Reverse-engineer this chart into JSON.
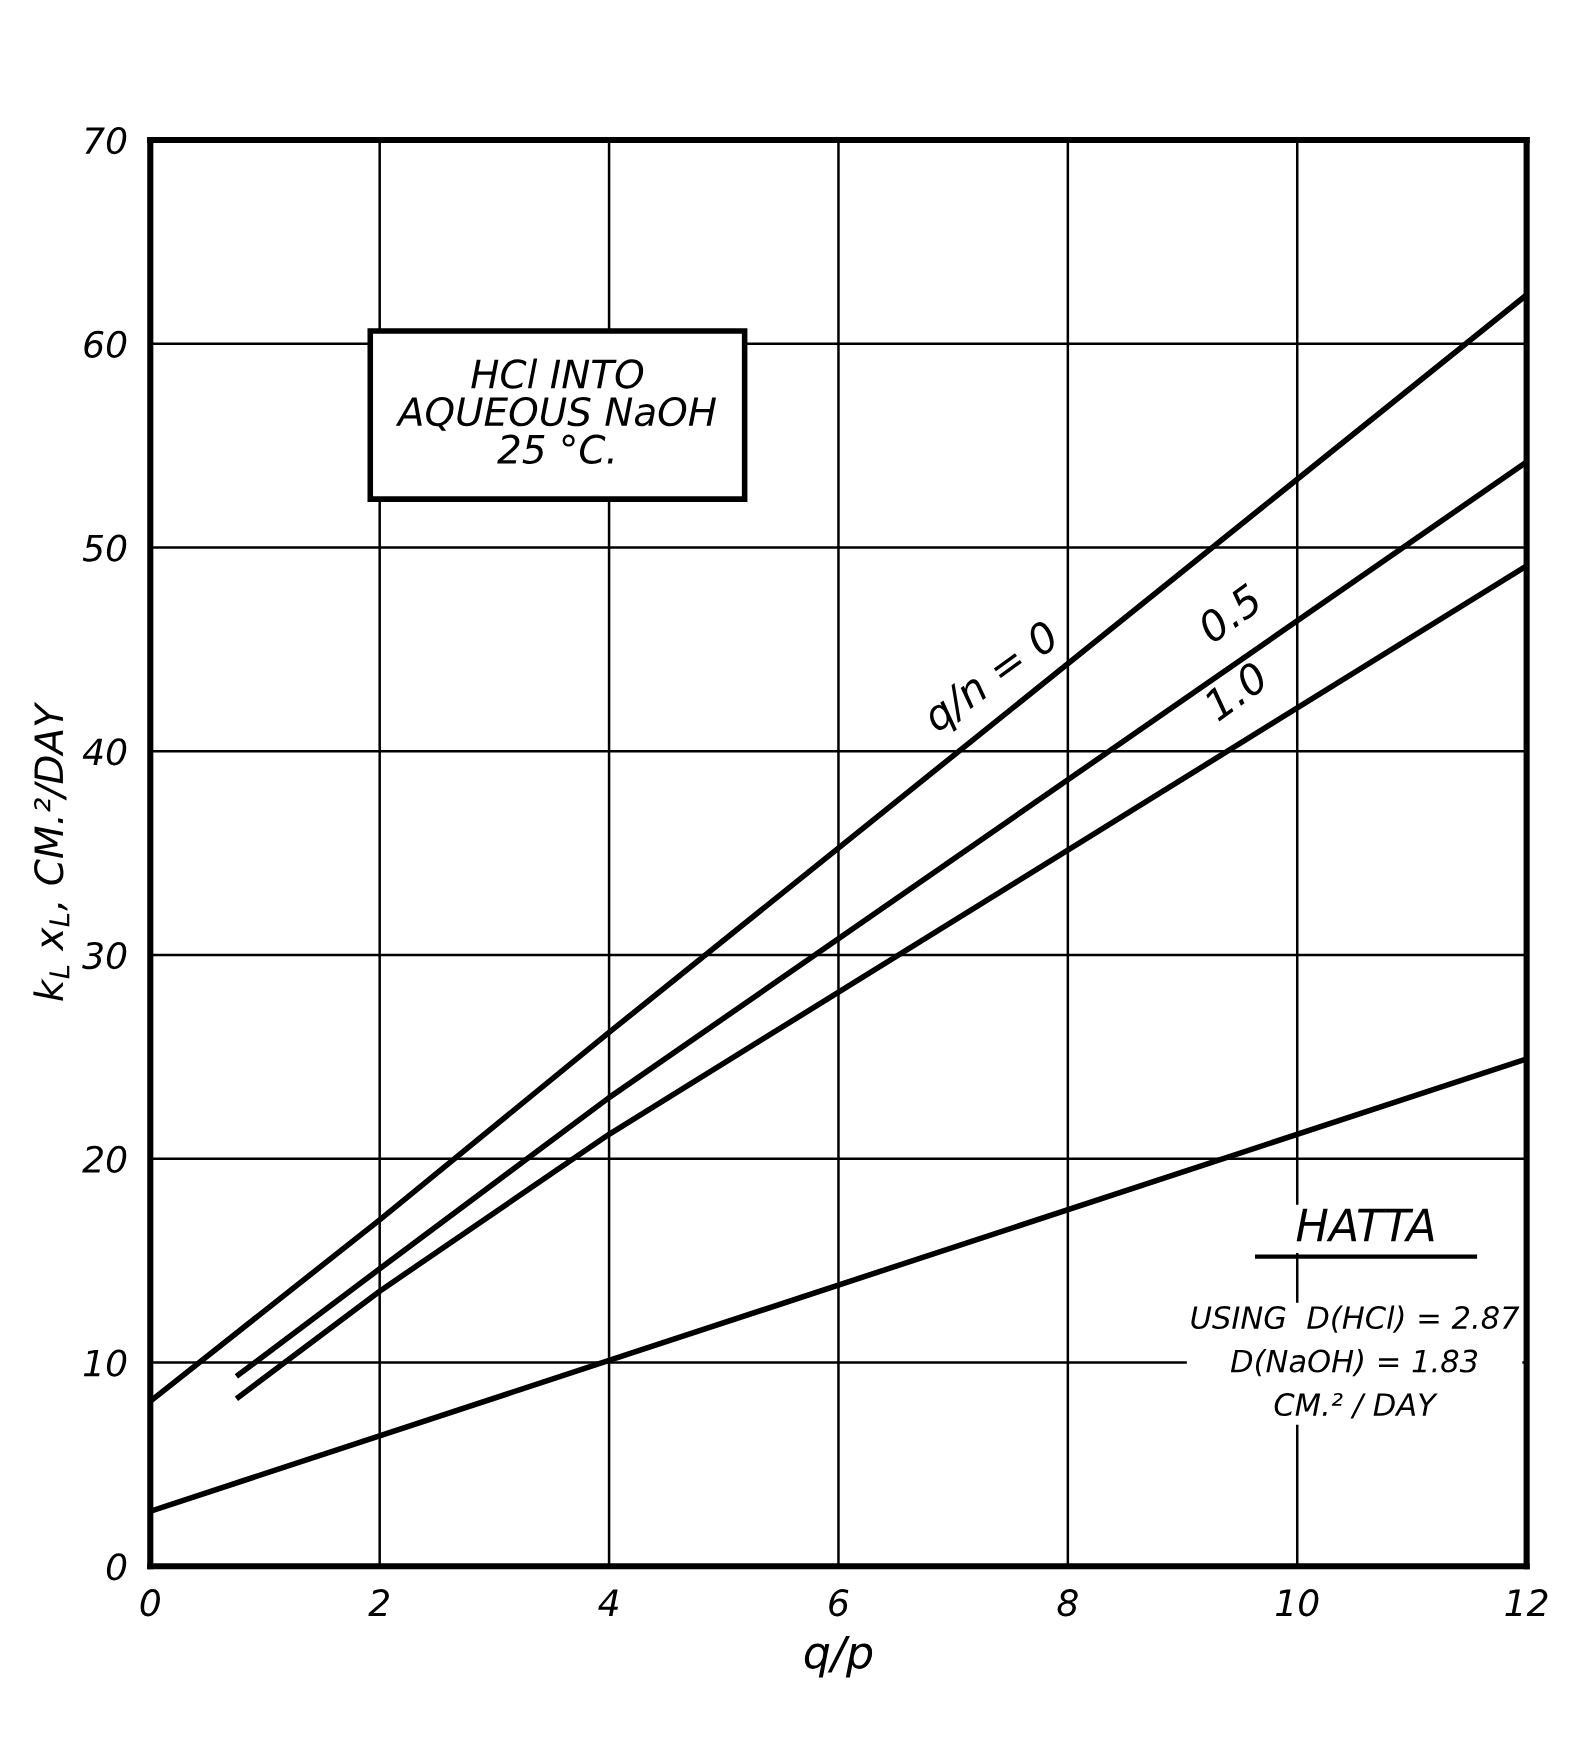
{
  "chart_data": {
    "type": "line",
    "xlabel": "q/p",
    "ylabel": "k$_{L}$ x$_{L}$, CM.²/DAY",
    "xlim": [
      0,
      12
    ],
    "ylim": [
      0,
      70
    ],
    "xticks": [
      0,
      2,
      4,
      6,
      8,
      10,
      12
    ],
    "yticks": [
      0,
      10,
      20,
      30,
      40,
      50,
      60,
      70
    ],
    "grid": true,
    "marker": "none",
    "line_style": "solid",
    "legend": false,
    "series": [
      {
        "name": "q/n = 0",
        "color": "#000000",
        "x": [
          0,
          2,
          4,
          12
        ],
        "values": [
          8.1,
          17.0,
          26.2,
          62.4
        ]
      },
      {
        "name": "0.5",
        "color": "#000000",
        "x": [
          0.77,
          2,
          4,
          12
        ],
        "values": [
          9.4,
          14.6,
          23.0,
          54.2
        ]
      },
      {
        "name": "1.0",
        "color": "#000000",
        "x": [
          0.77,
          2,
          4,
          12
        ],
        "values": [
          8.3,
          13.5,
          21.2,
          49.1
        ]
      },
      {
        "name": "HATTA",
        "color": "#000000",
        "x": [
          0,
          4,
          12
        ],
        "values": [
          2.7,
          10.1,
          24.9
        ]
      }
    ],
    "annotations": [
      "HCl INTO\nAQUEOUS NaOH\n25 °C.",
      "USING  D(HCl) = 2.87\nD(NaOH) = 1.83\nCM.² / DAY"
    ]
  }
}
